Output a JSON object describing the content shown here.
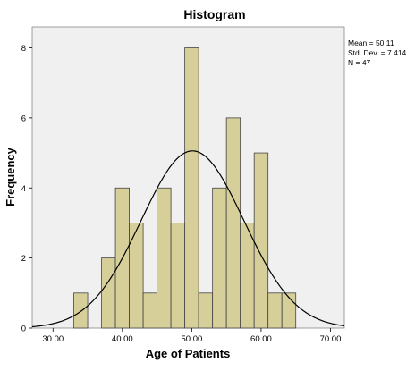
{
  "chart_data": {
    "type": "bar",
    "subtype": "histogram",
    "title": "Histogram",
    "xlabel": "Age of Patients",
    "ylabel": "Frequency",
    "xlim": [
      27.0,
      72.0
    ],
    "ylim": [
      0,
      8.6
    ],
    "x_ticks": [
      30,
      40,
      50,
      60,
      70
    ],
    "x_tick_labels": [
      "30.00",
      "40.00",
      "50.00",
      "60.00",
      "70.00"
    ],
    "y_ticks": [
      0,
      2,
      4,
      6,
      8
    ],
    "y_tick_labels": [
      "0",
      "2",
      "4",
      "6",
      "8"
    ],
    "bin_width": 2.0,
    "bins": [
      {
        "start": 33.0,
        "end": 35.0,
        "count": 1
      },
      {
        "start": 35.0,
        "end": 37.0,
        "count": 0
      },
      {
        "start": 37.0,
        "end": 39.0,
        "count": 2
      },
      {
        "start": 39.0,
        "end": 41.0,
        "count": 4
      },
      {
        "start": 41.0,
        "end": 43.0,
        "count": 3
      },
      {
        "start": 43.0,
        "end": 45.0,
        "count": 1
      },
      {
        "start": 45.0,
        "end": 47.0,
        "count": 4
      },
      {
        "start": 47.0,
        "end": 49.0,
        "count": 3
      },
      {
        "start": 49.0,
        "end": 51.0,
        "count": 8
      },
      {
        "start": 51.0,
        "end": 53.0,
        "count": 1
      },
      {
        "start": 53.0,
        "end": 55.0,
        "count": 4
      },
      {
        "start": 55.0,
        "end": 57.0,
        "count": 6
      },
      {
        "start": 57.0,
        "end": 59.0,
        "count": 3
      },
      {
        "start": 59.0,
        "end": 61.0,
        "count": 5
      },
      {
        "start": 61.0,
        "end": 63.0,
        "count": 1
      },
      {
        "start": 63.0,
        "end": 65.0,
        "count": 1
      }
    ],
    "normal_curve": {
      "mean": 50.11,
      "std_dev": 7.414,
      "n": 47
    },
    "stats": {
      "mean_label": "Mean = 50.11",
      "std_label": "Std. Dev. = 7.414",
      "n_label": "N = 47"
    },
    "grid": false,
    "legend": "none",
    "colors": {
      "plot_background": "#f0f0f0",
      "bar_fill": "#d6cf99",
      "bar_stroke": "#444444",
      "curve": "#000000"
    }
  }
}
